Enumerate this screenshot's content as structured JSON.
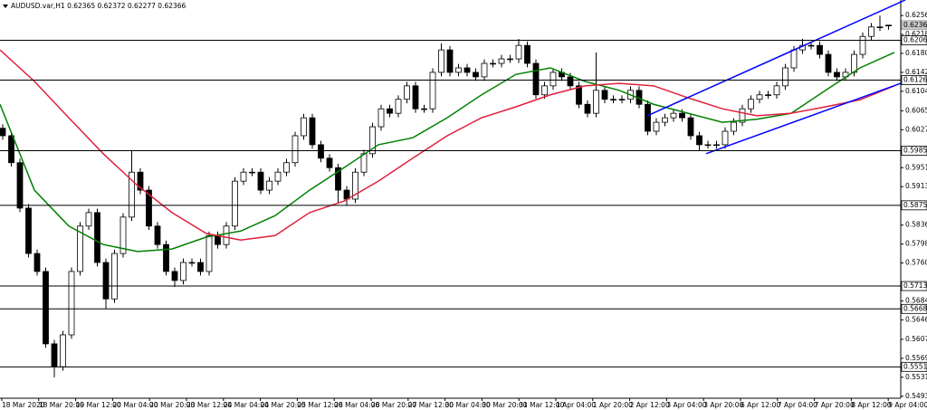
{
  "chart_data": {
    "type": "candlestick",
    "title": "AUDUSD.var,H1 0.62365 0.62372 0.62277 0.62366",
    "last_price": 0.62366,
    "ylim": [
      0.5489,
      0.6287
    ],
    "yticks": [
      {
        "value": 0.6256,
        "label": "0.62560"
      },
      {
        "value": 0.6218,
        "label": "0.62180"
      },
      {
        "value": 0.618,
        "label": "0.61800"
      },
      {
        "value": 0.6142,
        "label": "0.61420"
      },
      {
        "value": 0.6104,
        "label": "0.61040"
      },
      {
        "value": 0.6065,
        "label": "0.60650"
      },
      {
        "value": 0.6027,
        "label": "0.60270"
      },
      {
        "value": 0.5951,
        "label": "0.59510"
      },
      {
        "value": 0.5913,
        "label": "0.59130"
      },
      {
        "value": 0.5836,
        "label": "0.58360"
      },
      {
        "value": 0.5798,
        "label": "0.57980"
      },
      {
        "value": 0.576,
        "label": "0.57600"
      },
      {
        "value": 0.5684,
        "label": "0.56840"
      },
      {
        "value": 0.5646,
        "label": "0.56460"
      },
      {
        "value": 0.5607,
        "label": "0.56070"
      },
      {
        "value": 0.5569,
        "label": "0.55690"
      },
      {
        "value": 0.5531,
        "label": "0.55310"
      },
      {
        "value": 0.5493,
        "label": "0.54930"
      }
    ],
    "levels": [
      0.62062,
      0.61264,
      {
        "value": 0.5985,
        "label": "0.59850"
      },
      0.58756,
      0.57138,
      {
        "value": 0.5668,
        "label": "0.56680"
      },
      0.55519
    ],
    "time_labels": [
      "18 Mar 2020",
      "18 Mar 20:00",
      "19 Mar 12:00",
      "20 Mar 04:00",
      "20 Mar 20:00",
      "23 Mar 12:00",
      "24 Mar 04:00",
      "24 Mar 20:00",
      "25 Mar 12:00",
      "26 Mar 04:00",
      "26 Mar 20:00",
      "27 Mar 12:00",
      "30 Mar 04:00",
      "30 Mar 20:00",
      "31 Mar 12:00",
      "1 Apr 04:00",
      "1 Apr 20:00",
      "2 Apr 12:00",
      "3 Apr 04:00",
      "3 Apr 20:00",
      "6 Apr 12:00",
      "7 Apr 04:00",
      "7 Apr 20:00",
      "8 Apr 12:00",
      "9 Apr 04:00"
    ],
    "ohlc": [
      [
        0.603,
        0.6038,
        0.6007,
        0.6015
      ],
      [
        0.6015,
        0.6023,
        0.5953,
        0.5961
      ],
      [
        0.5961,
        0.5969,
        0.5862,
        0.587
      ],
      [
        0.587,
        0.5878,
        0.5771,
        0.5779
      ],
      [
        0.5779,
        0.5787,
        0.5735,
        0.5743
      ],
      [
        0.5743,
        0.5751,
        0.559,
        0.5598
      ],
      [
        0.5598,
        0.5606,
        0.5531,
        0.5552
      ],
      [
        0.5552,
        0.5624,
        0.5544,
        0.5616
      ],
      [
        0.5616,
        0.5751,
        0.5608,
        0.5743
      ],
      [
        0.5743,
        0.5842,
        0.5735,
        0.5834
      ],
      [
        0.5834,
        0.5869,
        0.5826,
        0.5861
      ],
      [
        0.5861,
        0.5869,
        0.5753,
        0.5761
      ],
      [
        0.5761,
        0.5769,
        0.5668,
        0.5688
      ],
      [
        0.5688,
        0.5787,
        0.568,
        0.5779
      ],
      [
        0.5779,
        0.586,
        0.5771,
        0.5852
      ],
      [
        0.5852,
        0.5985,
        0.5844,
        0.5942
      ],
      [
        0.5942,
        0.595,
        0.5898,
        0.5906
      ],
      [
        0.5906,
        0.5914,
        0.5826,
        0.5834
      ],
      [
        0.5834,
        0.5842,
        0.5789,
        0.5797
      ],
      [
        0.5797,
        0.5805,
        0.5735,
        0.5743
      ],
      [
        0.5743,
        0.5751,
        0.5712,
        0.5725
      ],
      [
        0.5725,
        0.5769,
        0.5717,
        0.5761
      ],
      [
        0.5761,
        0.5769,
        0.5753,
        0.5761
      ],
      [
        0.5761,
        0.5769,
        0.5735,
        0.5743
      ],
      [
        0.5743,
        0.5823,
        0.5735,
        0.5815
      ],
      [
        0.5815,
        0.5823,
        0.5789,
        0.5797
      ],
      [
        0.5797,
        0.5842,
        0.5789,
        0.5834
      ],
      [
        0.5834,
        0.5932,
        0.5826,
        0.5924
      ],
      [
        0.5924,
        0.595,
        0.5916,
        0.5942
      ],
      [
        0.5942,
        0.595,
        0.5934,
        0.5942
      ],
      [
        0.5942,
        0.595,
        0.5898,
        0.5906
      ],
      [
        0.5906,
        0.5932,
        0.5898,
        0.5924
      ],
      [
        0.5924,
        0.595,
        0.5916,
        0.5942
      ],
      [
        0.5942,
        0.5969,
        0.5934,
        0.5961
      ],
      [
        0.5961,
        0.6023,
        0.5953,
        0.6015
      ],
      [
        0.6015,
        0.6059,
        0.6007,
        0.6051
      ],
      [
        0.6051,
        0.6059,
        0.5989,
        0.5997
      ],
      [
        0.5997,
        0.6005,
        0.5962,
        0.597
      ],
      [
        0.597,
        0.5978,
        0.5943,
        0.5951
      ],
      [
        0.5951,
        0.5959,
        0.588,
        0.5906
      ],
      [
        0.5906,
        0.5914,
        0.5875,
        0.5888
      ],
      [
        0.5888,
        0.595,
        0.588,
        0.5942
      ],
      [
        0.5942,
        0.5987,
        0.5934,
        0.5979
      ],
      [
        0.5979,
        0.6041,
        0.5971,
        0.6033
      ],
      [
        0.6033,
        0.6077,
        0.6025,
        0.6069
      ],
      [
        0.6069,
        0.6077,
        0.6052,
        0.606
      ],
      [
        0.606,
        0.6096,
        0.6052,
        0.6088
      ],
      [
        0.6088,
        0.6123,
        0.608,
        0.6115
      ],
      [
        0.6115,
        0.6123,
        0.6061,
        0.6069
      ],
      [
        0.6069,
        0.6077,
        0.6061,
        0.6069
      ],
      [
        0.6069,
        0.615,
        0.6061,
        0.6142
      ],
      [
        0.6142,
        0.62,
        0.6134,
        0.6187
      ],
      [
        0.6187,
        0.6195,
        0.6134,
        0.6142
      ],
      [
        0.6142,
        0.6159,
        0.6134,
        0.6151
      ],
      [
        0.6151,
        0.6159,
        0.6134,
        0.6142
      ],
      [
        0.6142,
        0.615,
        0.6125,
        0.6133
      ],
      [
        0.6133,
        0.6168,
        0.6125,
        0.616
      ],
      [
        0.616,
        0.6168,
        0.6152,
        0.616
      ],
      [
        0.616,
        0.6177,
        0.6152,
        0.6169
      ],
      [
        0.6169,
        0.6177,
        0.6161,
        0.6169
      ],
      [
        0.6169,
        0.6209,
        0.6161,
        0.6196
      ],
      [
        0.6196,
        0.6204,
        0.6152,
        0.616
      ],
      [
        0.616,
        0.6168,
        0.6089,
        0.6097
      ],
      [
        0.6097,
        0.6123,
        0.6089,
        0.6115
      ],
      [
        0.6115,
        0.615,
        0.6107,
        0.6142
      ],
      [
        0.6142,
        0.615,
        0.6125,
        0.6133
      ],
      [
        0.6133,
        0.6141,
        0.6107,
        0.6115
      ],
      [
        0.6115,
        0.6123,
        0.607,
        0.6078
      ],
      [
        0.6078,
        0.6086,
        0.6052,
        0.606
      ],
      [
        0.606,
        0.6182,
        0.6052,
        0.6106
      ],
      [
        0.6106,
        0.6114,
        0.608,
        0.6088
      ],
      [
        0.6088,
        0.6096,
        0.608,
        0.6088
      ],
      [
        0.6088,
        0.6096,
        0.608,
        0.6088
      ],
      [
        0.6088,
        0.6114,
        0.608,
        0.6106
      ],
      [
        0.6106,
        0.6114,
        0.607,
        0.6078
      ],
      [
        0.6078,
        0.6086,
        0.6016,
        0.6024
      ],
      [
        0.6024,
        0.605,
        0.6016,
        0.6042
      ],
      [
        0.6042,
        0.6059,
        0.6034,
        0.6051
      ],
      [
        0.6051,
        0.6068,
        0.6043,
        0.606
      ],
      [
        0.606,
        0.6068,
        0.6043,
        0.6051
      ],
      [
        0.6051,
        0.6059,
        0.6007,
        0.6015
      ],
      [
        0.6015,
        0.6023,
        0.5985,
        0.5997
      ],
      [
        0.5997,
        0.6005,
        0.5989,
        0.5997
      ],
      [
        0.5997,
        0.6005,
        0.5989,
        0.5997
      ],
      [
        0.5997,
        0.6032,
        0.5989,
        0.6024
      ],
      [
        0.6024,
        0.605,
        0.6016,
        0.6042
      ],
      [
        0.6042,
        0.6077,
        0.6034,
        0.6069
      ],
      [
        0.6069,
        0.6096,
        0.6061,
        0.6088
      ],
      [
        0.6088,
        0.6105,
        0.608,
        0.6097
      ],
      [
        0.6097,
        0.6105,
        0.6089,
        0.6097
      ],
      [
        0.6097,
        0.6123,
        0.6089,
        0.6115
      ],
      [
        0.6115,
        0.6159,
        0.6107,
        0.6151
      ],
      [
        0.6151,
        0.6195,
        0.6143,
        0.6187
      ],
      [
        0.6187,
        0.6209,
        0.6179,
        0.6196
      ],
      [
        0.6196,
        0.6204,
        0.6188,
        0.6196
      ],
      [
        0.6196,
        0.6204,
        0.617,
        0.6178
      ],
      [
        0.6178,
        0.6186,
        0.6134,
        0.6142
      ],
      [
        0.6142,
        0.615,
        0.6125,
        0.6133
      ],
      [
        0.6133,
        0.615,
        0.6125,
        0.6142
      ],
      [
        0.6142,
        0.6186,
        0.6134,
        0.6178
      ],
      [
        0.6178,
        0.6222,
        0.617,
        0.6214
      ],
      [
        0.6214,
        0.6241,
        0.6206,
        0.6233
      ],
      [
        0.6233,
        0.6256,
        0.6225,
        0.6233
      ],
      [
        0.62365,
        0.62372,
        0.62277,
        0.62366
      ]
    ],
    "series": [
      {
        "color": "#008000",
        "values": [
          0.6078,
          0.5906,
          0.5834,
          0.5797,
          0.5783,
          0.5788,
          0.5812,
          0.5824,
          0.5855,
          0.5906,
          0.5951,
          0.5997,
          0.6011,
          0.6051,
          0.6097,
          0.6138,
          0.6151,
          0.6124,
          0.6106,
          0.6078,
          0.606,
          0.6042,
          0.6048,
          0.606,
          0.6106,
          0.6151,
          0.6182
        ]
      },
      {
        "color": "#e0203c",
        "values": [
          0.6187,
          0.6124,
          0.6051,
          0.5979,
          0.5915,
          0.5861,
          0.5819,
          0.5806,
          0.5815,
          0.5861,
          0.5884,
          0.5924,
          0.597,
          0.6015,
          0.6051,
          0.6073,
          0.6097,
          0.6115,
          0.612,
          0.6115,
          0.6091,
          0.6069,
          0.6055,
          0.606,
          0.6073,
          0.6087,
          0.6115
        ]
      }
    ],
    "trendlines": [
      {
        "color": "#0000ff",
        "values": [
          0.6055,
          0.6287
        ]
      },
      {
        "color": "#0000ff",
        "values": [
          0.5979,
          0.612
        ]
      }
    ]
  }
}
